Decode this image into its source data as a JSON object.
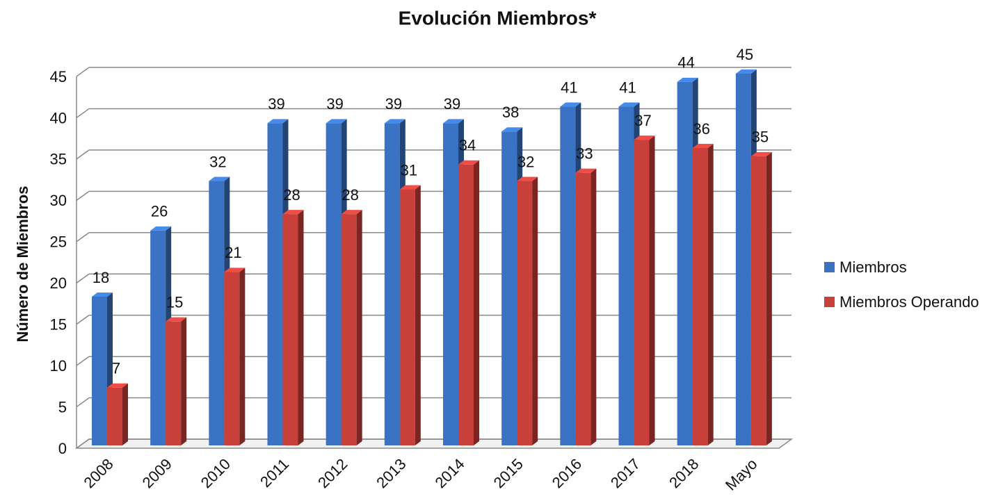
{
  "chart_data": {
    "type": "bar3d",
    "title": "Evolución Miembros*",
    "y_label": "Número de Miembros",
    "categories": [
      "2008",
      "2009",
      "2010",
      "2011",
      "2012",
      "2013",
      "2014",
      "2015",
      "2016",
      "2017",
      "2018",
      "Mayo"
    ],
    "series": [
      {
        "name": "Miembros",
        "color": "#3a73c4",
        "values": [
          18,
          26,
          32,
          39,
          39,
          39,
          39,
          38,
          41,
          41,
          44,
          45
        ]
      },
      {
        "name": "Miembros Operando",
        "color": "#c9403a",
        "values": [
          7,
          15,
          21,
          28,
          28,
          31,
          34,
          32,
          33,
          37,
          36,
          35
        ]
      }
    ],
    "ylim": [
      0,
      45
    ],
    "yticks": [
      0,
      5,
      10,
      15,
      20,
      25,
      30,
      35,
      40,
      45
    ],
    "grid": true,
    "legend": "right"
  }
}
